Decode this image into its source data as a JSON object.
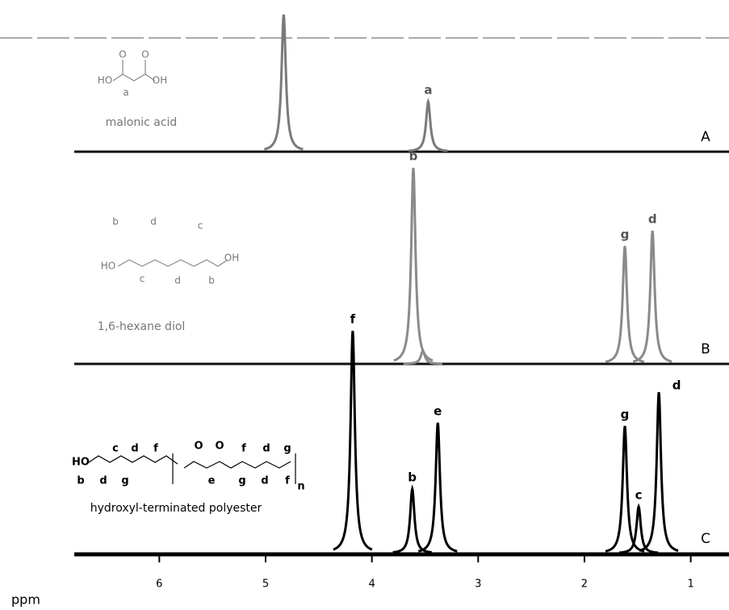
{
  "chart_data": {
    "type": "spectrum",
    "xlabel": "ppm",
    "xlim": [
      6.8,
      0.64
    ],
    "xticks": [
      6,
      5,
      4,
      3,
      2,
      1
    ],
    "series": [
      {
        "name": "A",
        "color": "#7a7a7a",
        "compound": "malonic acid",
        "structure_labels": [
          "O",
          "O",
          "HO",
          "OH",
          "a"
        ],
        "x": [
          4.83,
          3.47
        ],
        "values": [
          170,
          62
        ],
        "labels": [
          null,
          "a"
        ]
      },
      {
        "name": "B",
        "color": "#8a8a8a",
        "compound": "1,6-hexane diol",
        "structure_labels": [
          "b",
          "d",
          "c",
          "HO",
          "OH",
          "c",
          "d",
          "b"
        ],
        "x": [
          3.61,
          3.52,
          1.62,
          1.36
        ],
        "values": [
          243,
          16,
          146,
          165
        ],
        "labels": [
          "b",
          null,
          "g",
          "d"
        ]
      },
      {
        "name": "C",
        "color": "#000000",
        "compound": "hydroxyl-terminated polyester",
        "structure_labels": [
          "HO",
          "c",
          "d",
          "f",
          "O",
          "O",
          "f",
          "d",
          "g",
          "b",
          "d",
          "g",
          "e",
          "g",
          "d",
          "f",
          "n"
        ],
        "x": [
          4.18,
          3.62,
          3.38,
          1.62,
          1.49,
          1.3
        ],
        "values": [
          276,
          80,
          162,
          158,
          58,
          200
        ],
        "labels": [
          "f",
          "b",
          "e",
          "g",
          "c",
          "d"
        ]
      }
    ]
  }
}
